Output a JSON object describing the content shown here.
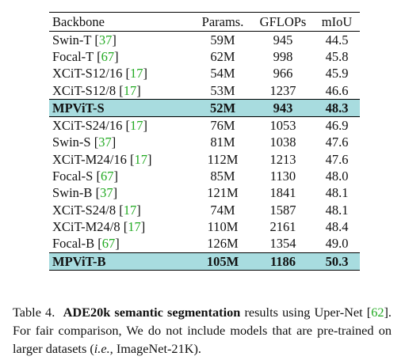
{
  "table": {
    "headers": [
      "Backbone",
      "Params.",
      "GFLOPs",
      "mIoU"
    ],
    "rows": [
      {
        "name": "Swin-T",
        "ref": "37",
        "params": "59M",
        "gflops": "945",
        "miou": "44.5",
        "highlight": false
      },
      {
        "name": "Focal-T",
        "ref": "67",
        "params": "62M",
        "gflops": "998",
        "miou": "45.8",
        "highlight": false
      },
      {
        "name": "XCiT-S12/16",
        "ref": "17",
        "params": "54M",
        "gflops": "966",
        "miou": "45.9",
        "highlight": false
      },
      {
        "name": "XCiT-S12/8",
        "ref": "17",
        "params": "53M",
        "gflops": "1237",
        "miou": "46.6",
        "highlight": false
      },
      {
        "name": "MPViT-S",
        "ref": "",
        "params": "52M",
        "gflops": "943",
        "miou": "48.3",
        "highlight": true
      },
      {
        "name": "XCiT-S24/16",
        "ref": "17",
        "params": "76M",
        "gflops": "1053",
        "miou": "46.9",
        "highlight": false
      },
      {
        "name": "Swin-S",
        "ref": "37",
        "params": "81M",
        "gflops": "1038",
        "miou": "47.6",
        "highlight": false
      },
      {
        "name": "XCiT-M24/16",
        "ref": "17",
        "params": "112M",
        "gflops": "1213",
        "miou": "47.6",
        "highlight": false
      },
      {
        "name": "Focal-S",
        "ref": "67",
        "params": "85M",
        "gflops": "1130",
        "miou": "48.0",
        "highlight": false
      },
      {
        "name": "Swin-B",
        "ref": "37",
        "params": "121M",
        "gflops": "1841",
        "miou": "48.1",
        "highlight": false
      },
      {
        "name": "XCiT-S24/8",
        "ref": "17",
        "params": "74M",
        "gflops": "1587",
        "miou": "48.1",
        "highlight": false
      },
      {
        "name": "XCiT-M24/8",
        "ref": "17",
        "params": "110M",
        "gflops": "2161",
        "miou": "48.4",
        "highlight": false
      },
      {
        "name": "Focal-B",
        "ref": "67",
        "params": "126M",
        "gflops": "1354",
        "miou": "49.0",
        "highlight": false
      },
      {
        "name": "MPViT-B",
        "ref": "",
        "params": "105M",
        "gflops": "1186",
        "miou": "50.3",
        "highlight": true
      }
    ]
  },
  "caption": {
    "label": "Table 4.",
    "bold": "ADE20k semantic segmentation",
    "text1": "results using Uper-Net",
    "ref": "62",
    "text2": ". For fair comparison, We do not include models that are pre-trained on larger datasets (",
    "italic": "i.e.,",
    "text3": "ImageNet-21K)."
  },
  "colors": {
    "highlight_row": "#a8dcdf",
    "citation": "#22aa22"
  }
}
